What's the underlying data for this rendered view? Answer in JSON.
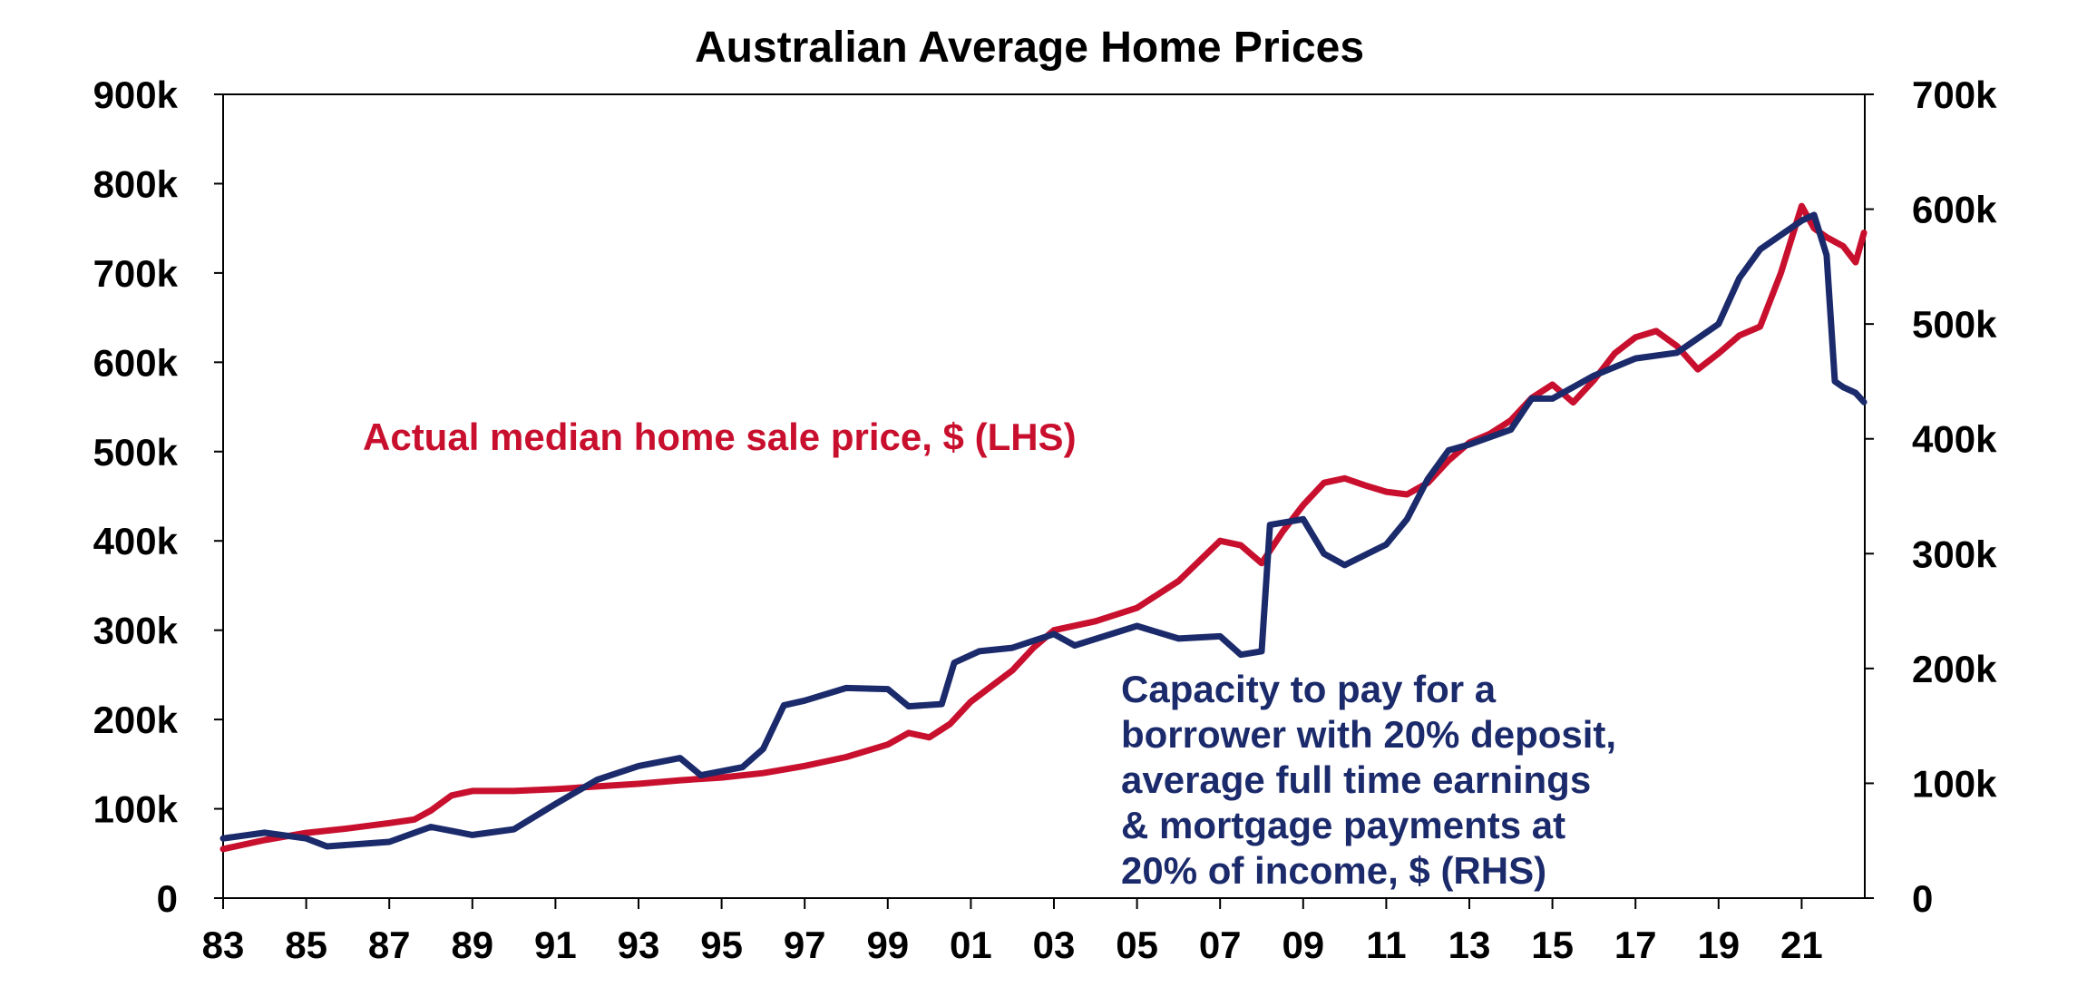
{
  "chart_data": {
    "type": "line",
    "title": "Australian Average Home Prices",
    "xlabel": "",
    "x_ticks": [
      "83",
      "85",
      "87",
      "89",
      "91",
      "93",
      "95",
      "97",
      "99",
      "01",
      "03",
      "05",
      "07",
      "09",
      "11",
      "13",
      "15",
      "17",
      "19",
      "21"
    ],
    "x_range": [
      1983,
      2022.6
    ],
    "y_left": {
      "ylim": [
        0,
        900000
      ],
      "ticks": [
        {
          "value": 0,
          "label": "0"
        },
        {
          "value": 100000,
          "label": "100k"
        },
        {
          "value": 200000,
          "label": "200k"
        },
        {
          "value": 300000,
          "label": "300k"
        },
        {
          "value": 400000,
          "label": "400k"
        },
        {
          "value": 500000,
          "label": "500k"
        },
        {
          "value": 600000,
          "label": "600k"
        },
        {
          "value": 700000,
          "label": "700k"
        },
        {
          "value": 800000,
          "label": "800k"
        },
        {
          "value": 900000,
          "label": "900k"
        }
      ]
    },
    "y_right": {
      "ylim": [
        0,
        700000
      ],
      "ticks": [
        {
          "value": 0,
          "label": "0"
        },
        {
          "value": 100000,
          "label": "100k"
        },
        {
          "value": 200000,
          "label": "200k"
        },
        {
          "value": 300000,
          "label": "300k"
        },
        {
          "value": 400000,
          "label": "400k"
        },
        {
          "value": 500000,
          "label": "500k"
        },
        {
          "value": 600000,
          "label": "600k"
        },
        {
          "value": 700000,
          "label": "700k"
        }
      ]
    },
    "grid": false,
    "series": [
      {
        "name": "Actual median home sale price, $ (LHS)",
        "axis": "left",
        "color": "#c8102e",
        "points": [
          [
            1983.0,
            55000
          ],
          [
            1984.0,
            65000
          ],
          [
            1985.0,
            73000
          ],
          [
            1986.0,
            78000
          ],
          [
            1987.0,
            84000
          ],
          [
            1987.6,
            88000
          ],
          [
            1988.0,
            98000
          ],
          [
            1988.5,
            115000
          ],
          [
            1989.0,
            120000
          ],
          [
            1990.0,
            120000
          ],
          [
            1991.0,
            122000
          ],
          [
            1992.0,
            125000
          ],
          [
            1993.0,
            128000
          ],
          [
            1994.0,
            132000
          ],
          [
            1995.0,
            135000
          ],
          [
            1996.0,
            140000
          ],
          [
            1997.0,
            148000
          ],
          [
            1998.0,
            158000
          ],
          [
            1999.0,
            172000
          ],
          [
            1999.5,
            185000
          ],
          [
            2000.0,
            180000
          ],
          [
            2000.5,
            195000
          ],
          [
            2001.0,
            220000
          ],
          [
            2002.0,
            255000
          ],
          [
            2002.5,
            280000
          ],
          [
            2003.0,
            300000
          ],
          [
            2004.0,
            310000
          ],
          [
            2005.0,
            325000
          ],
          [
            2006.0,
            355000
          ],
          [
            2007.0,
            400000
          ],
          [
            2007.5,
            395000
          ],
          [
            2008.0,
            375000
          ],
          [
            2008.5,
            410000
          ],
          [
            2009.0,
            440000
          ],
          [
            2009.5,
            465000
          ],
          [
            2010.0,
            470000
          ],
          [
            2010.5,
            462000
          ],
          [
            2011.0,
            455000
          ],
          [
            2011.5,
            452000
          ],
          [
            2012.0,
            465000
          ],
          [
            2012.5,
            490000
          ],
          [
            2013.0,
            510000
          ],
          [
            2013.5,
            520000
          ],
          [
            2014.0,
            535000
          ],
          [
            2014.5,
            560000
          ],
          [
            2015.0,
            575000
          ],
          [
            2015.5,
            555000
          ],
          [
            2016.0,
            580000
          ],
          [
            2016.5,
            610000
          ],
          [
            2017.0,
            628000
          ],
          [
            2017.5,
            635000
          ],
          [
            2018.0,
            618000
          ],
          [
            2018.5,
            592000
          ],
          [
            2019.0,
            610000
          ],
          [
            2019.5,
            630000
          ],
          [
            2020.0,
            640000
          ],
          [
            2020.5,
            700000
          ],
          [
            2021.0,
            775000
          ],
          [
            2021.3,
            750000
          ],
          [
            2021.6,
            740000
          ],
          [
            2022.0,
            730000
          ],
          [
            2022.3,
            712000
          ],
          [
            2022.5,
            745000
          ]
        ]
      },
      {
        "name": "Capacity to pay for a borrower with 20% deposit, average full time earnings & mortgage payments at 20% of income, $ (RHS)",
        "axis": "right",
        "color": "#1b2a6b",
        "points": [
          [
            1983.0,
            52000
          ],
          [
            1984.0,
            57000
          ],
          [
            1985.0,
            52000
          ],
          [
            1985.5,
            45000
          ],
          [
            1987.0,
            49000
          ],
          [
            1988.0,
            62000
          ],
          [
            1989.0,
            55000
          ],
          [
            1990.0,
            60000
          ],
          [
            1991.0,
            82000
          ],
          [
            1992.0,
            103000
          ],
          [
            1993.0,
            115000
          ],
          [
            1994.0,
            122000
          ],
          [
            1994.5,
            107000
          ],
          [
            1995.5,
            114000
          ],
          [
            1996.0,
            130000
          ],
          [
            1996.5,
            168000
          ],
          [
            1997.0,
            172000
          ],
          [
            1998.0,
            183000
          ],
          [
            1999.0,
            182000
          ],
          [
            1999.5,
            167000
          ],
          [
            2000.3,
            169000
          ],
          [
            2000.6,
            205000
          ],
          [
            2001.2,
            215000
          ],
          [
            2002.0,
            218000
          ],
          [
            2003.0,
            230000
          ],
          [
            2003.5,
            220000
          ],
          [
            2005.0,
            237000
          ],
          [
            2006.0,
            226000
          ],
          [
            2007.0,
            228000
          ],
          [
            2007.5,
            212000
          ],
          [
            2008.0,
            215000
          ],
          [
            2008.2,
            325000
          ],
          [
            2009.0,
            330000
          ],
          [
            2009.5,
            300000
          ],
          [
            2010.0,
            290000
          ],
          [
            2011.0,
            308000
          ],
          [
            2011.5,
            330000
          ],
          [
            2012.0,
            365000
          ],
          [
            2012.5,
            390000
          ],
          [
            2013.0,
            395000
          ],
          [
            2014.0,
            408000
          ],
          [
            2014.5,
            435000
          ],
          [
            2015.0,
            435000
          ],
          [
            2016.0,
            455000
          ],
          [
            2017.0,
            470000
          ],
          [
            2018.0,
            475000
          ],
          [
            2019.0,
            500000
          ],
          [
            2019.5,
            540000
          ],
          [
            2020.0,
            565000
          ],
          [
            2021.0,
            590000
          ],
          [
            2021.3,
            595000
          ],
          [
            2021.6,
            560000
          ],
          [
            2021.8,
            450000
          ],
          [
            2022.0,
            445000
          ],
          [
            2022.3,
            440000
          ],
          [
            2022.5,
            432000
          ]
        ]
      }
    ],
    "annotations": {
      "red_label": "Actual median home sale price, $ (LHS)",
      "blue_label_lines": [
        "Capacity to pay for a",
        "borrower with 20% deposit,",
        "average full time earnings",
        "& mortgage payments at",
        "20% of income, $ (RHS)"
      ]
    }
  }
}
